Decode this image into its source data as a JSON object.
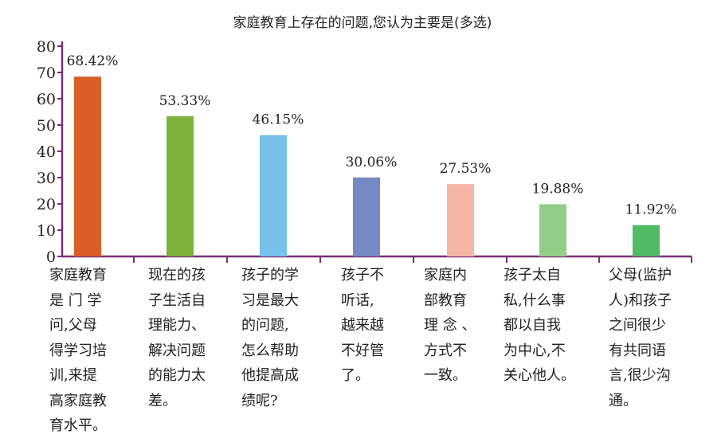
{
  "chart_data": {
    "type": "bar",
    "title": "家庭教育上存在的问题,您认为主要是(多选)",
    "xlabel": "",
    "ylabel": "",
    "ylim": [
      0,
      80
    ],
    "yticks": [
      "0",
      "10",
      "20",
      "30",
      "40",
      "50",
      "60",
      "70",
      "80"
    ],
    "grid": false,
    "categories": [
      "家庭教育\n是 门 学\n问,父母\n得学习培\n训,来提\n高家庭教\n育水平。",
      "现在的孩\n子生活自\n理能力、\n解决问题\n的能力太\n差。",
      "孩子的学\n习是最大\n的问题,\n怎么帮助\n他提高成\n绩呢?",
      "孩子不\n听话,\n越来越\n不好管\n了。",
      "家庭内\n部教育\n理 念 、\n方式不\n一致。",
      "孩子太自\n私,什么事\n都以自我\n为中心,不\n关心他人。",
      "父母(监护\n人)和孩子\n之间很少\n有共同语\n言,很少沟\n通。"
    ],
    "values": [
      68.42,
      53.33,
      46.15,
      30.06,
      27.53,
      19.88,
      11.92
    ],
    "data_labels": [
      "68.42%",
      "53.33%",
      "46.15%",
      "30.06%",
      "27.53%",
      "19.88%",
      "11.92%"
    ],
    "colors": [
      "#d95f26",
      "#7fb23a",
      "#77c0ea",
      "#7589c4",
      "#f6b6a6",
      "#93cd87",
      "#52b965"
    ],
    "axis_color": "#7a2e73"
  }
}
